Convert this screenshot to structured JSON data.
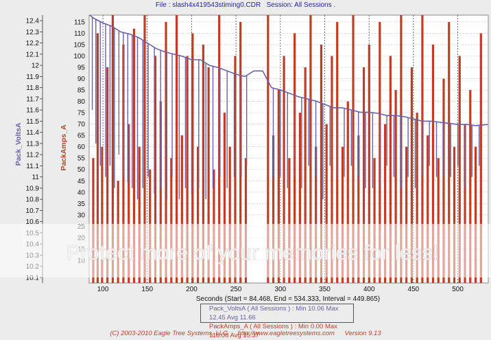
{
  "header": {
    "file_label": "File : slash4x419543stiming0.CDR",
    "session_label": "Session: All Sessions ."
  },
  "chart_data": {
    "type": "line",
    "x_caption": "Seconds (Start = 84.468,  End = 534.333,  Interval =  449.865)",
    "xlim": [
      84.468,
      534.333
    ],
    "x_ticks": [
      100,
      150,
      200,
      250,
      300,
      350,
      400,
      450,
      500
    ],
    "left_axis": {
      "label": "Pack_VoltsA",
      "ylim": [
        10.05,
        12.45
      ],
      "ticks": [
        "10.1",
        "10.2",
        "10.3",
        "10.4",
        "10.5",
        "10.6",
        "10.7",
        "10.8",
        "10.9",
        "11",
        "11.1",
        "11.2",
        "11.3",
        "11.4",
        "11.5",
        "11.6",
        "11.7",
        "11.8",
        "11.9",
        "12",
        "12.1",
        "12.2",
        "12.3",
        "12.4"
      ]
    },
    "right_axis": {
      "label": "PackAmps_A",
      "ylim": [
        0,
        118
      ],
      "ticks": [
        "10",
        "15",
        "20",
        "25",
        "30",
        "35",
        "40",
        "45",
        "50",
        "55",
        "60",
        "65",
        "70",
        "75",
        "80",
        "85",
        "90",
        "95",
        "100",
        "105",
        "110",
        "115"
      ]
    },
    "series": [
      {
        "name": "Pack_VoltsA",
        "color": "#6a5fa8",
        "x": [
          85,
          90,
          100,
          110,
          120,
          130,
          140,
          150,
          160,
          170,
          180,
          190,
          200,
          210,
          220,
          230,
          240,
          250,
          260,
          270,
          280,
          290,
          300,
          310,
          320,
          330,
          340,
          350,
          360,
          370,
          380,
          390,
          400,
          410,
          420,
          430,
          440,
          450,
          460,
          470,
          480,
          490,
          500,
          510,
          520,
          534
        ],
        "y": [
          12.45,
          12.42,
          12.38,
          12.35,
          12.3,
          12.28,
          12.25,
          12.2,
          12.15,
          12.12,
          12.1,
          12.08,
          12.05,
          12.05,
          12.0,
          11.98,
          11.95,
          11.92,
          11.9,
          11.95,
          11.95,
          11.8,
          11.78,
          11.75,
          11.72,
          11.7,
          11.68,
          11.65,
          11.62,
          11.62,
          11.6,
          11.58,
          11.58,
          11.57,
          11.55,
          11.55,
          11.54,
          11.52,
          11.5,
          11.5,
          11.49,
          11.48,
          11.47,
          11.47,
          11.46,
          11.47
        ],
        "dips_x": [
          88,
          92,
          97,
          103,
          108,
          113,
          118,
          123,
          128,
          133,
          139,
          145,
          151,
          158,
          165,
          172,
          178,
          186,
          193,
          200,
          208,
          216,
          224,
          232,
          240,
          248,
          256,
          262,
          292,
          300,
          308,
          316,
          324,
          332,
          340,
          348,
          356,
          364,
          372,
          380,
          388,
          396,
          404,
          412,
          420,
          428,
          436,
          444,
          452,
          460,
          468,
          476,
          484,
          492,
          500,
          508,
          516,
          524
        ],
        "dips_y": [
          11.6,
          11.3,
          11.1,
          11.0,
          11.1,
          10.9,
          11.2,
          11.0,
          10.95,
          10.9,
          10.8,
          10.9,
          11.0,
          10.85,
          10.9,
          10.8,
          11.0,
          10.8,
          10.9,
          10.85,
          10.9,
          10.8,
          10.9,
          11.0,
          10.9,
          11.0,
          11.0,
          11.1,
          11.0,
          11.0,
          10.9,
          11.0,
          10.9,
          11.1,
          11.0,
          10.8,
          11.1,
          11.0,
          11.0,
          11.1,
          11.0,
          10.9,
          10.9,
          10.9,
          11.1,
          11.0,
          10.9,
          11.0,
          10.9,
          11.0,
          11.1,
          11.0,
          11.0,
          11.0,
          11.1,
          10.9,
          11.0,
          11.1
        ]
      },
      {
        "name": "PackAmps_A",
        "color": "#c23b22",
        "spikes_x": [
          89,
          94,
          99,
          105,
          111,
          117,
          123,
          129,
          135,
          141,
          147,
          153,
          159,
          165,
          171,
          177,
          183,
          189,
          195,
          201,
          207,
          213,
          219,
          225,
          231,
          237,
          243,
          249,
          255,
          261,
          286,
          292,
          298,
          304,
          310,
          316,
          322,
          328,
          334,
          340,
          346,
          352,
          358,
          364,
          370,
          376,
          382,
          388,
          394,
          400,
          406,
          412,
          418,
          424,
          430,
          436,
          442,
          448,
          454,
          460,
          466,
          472,
          478,
          484,
          490,
          496,
          502,
          508,
          514,
          520,
          526
        ],
        "spikes_y": [
          55,
          110,
          60,
          95,
          118,
          45,
          105,
          70,
          112,
          60,
          118,
          50,
          100,
          80,
          115,
          55,
          118,
          65,
          100,
          110,
          60,
          105,
          95,
          50,
          118,
          75,
          60,
          100,
          115,
          55,
          118,
          65,
          85,
          100,
          55,
          110,
          75,
          95,
          118,
          60,
          105,
          70,
          100,
          115,
          60,
          80,
          118,
          65,
          95,
          105,
          55,
          115,
          70,
          100,
          85,
          118,
          60,
          95,
          75,
          118,
          65,
          105,
          55,
          90,
          115,
          60,
          100,
          70,
          85,
          60,
          110
        ]
      }
    ],
    "grid": true,
    "legend": [
      {
        "text": "Pack_VoltsA ( All Sessions ) : Min 10.06   Max 12.45   Avg 11.66"
      },
      {
        "text": "PackAmps_A ( All Sessions ) : Min 0.00   Max 118.08   Avg 15.37"
      }
    ]
  },
  "footer": {
    "copyright": "(C) 2003-2010 Eagle Tree Systems, LLC",
    "url": "http://www.eagletreesystems.com",
    "version": "Version 9.13"
  },
  "watermark": {
    "text": "Protect more of your memories for less!"
  }
}
